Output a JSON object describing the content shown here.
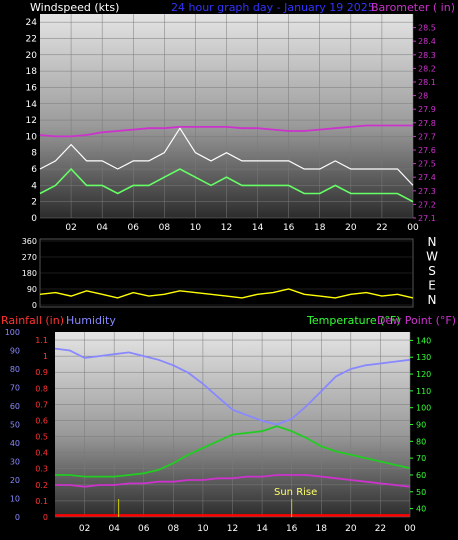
{
  "header": {
    "left_label": "Windspeed (kts)",
    "center_label": "24 hour graph day - January 19 2025",
    "right_label": "Barometer ( in)"
  },
  "wind_panel": {
    "left_ticks": [
      "24",
      "22",
      "20",
      "18",
      "16",
      "14",
      "12",
      "10",
      "8",
      "6",
      "4",
      "2",
      "0"
    ],
    "right_ticks": [
      "28.5",
      "28.4",
      "28.3",
      "28.2",
      "28.1",
      "28",
      "27.9",
      "27.8",
      "27.7",
      "27.6",
      "27.5",
      "27.4",
      "27.3",
      "27.2",
      "27.1"
    ],
    "x_ticks": [
      "02",
      "04",
      "06",
      "08",
      "10",
      "12",
      "14",
      "16",
      "18",
      "20",
      "22",
      "00"
    ]
  },
  "dir_panel": {
    "left_ticks": [
      "360",
      "270",
      "180",
      "90",
      "0"
    ],
    "compass": [
      "N",
      "W",
      "S",
      "E",
      "N"
    ]
  },
  "lower_header": {
    "rainfall_label": "Rainfall (in)",
    "humidity_label": "Humidity",
    "temperature_label": "Temperature (°F)",
    "dewpoint_label": "Dew Point (°F)"
  },
  "lower_panel": {
    "humidity_ticks": [
      "100",
      "90",
      "80",
      "70",
      "60",
      "50",
      "40",
      "30",
      "20",
      "10",
      "0"
    ],
    "rain_ticks": [
      "1.1",
      "1",
      "0.9",
      "0.8",
      "0.7",
      "0.6",
      "0.5",
      "0.4",
      "0.3",
      "0.2",
      "0.1",
      "0"
    ],
    "temp_ticks": [
      "140",
      "130",
      "120",
      "110",
      "100",
      "90",
      "80",
      "70",
      "60",
      "50",
      "40"
    ],
    "x_ticks": [
      "02",
      "04",
      "06",
      "08",
      "10",
      "12",
      "14",
      "16",
      "18",
      "20",
      "22",
      "00"
    ],
    "annotation": "Sun Rise"
  },
  "colors": {
    "windspeed": "#ffffff",
    "gust": "#66ff66",
    "barometer": "#cc33cc",
    "direction": "#ffff00",
    "rain": "#ff0000",
    "humidity": "#8888ff",
    "temperature": "#22cc22",
    "dewpoint": "#cc33cc",
    "header_left": "#ffffff",
    "header_center": "#3333ff",
    "header_right": "#cc33cc",
    "rain_label": "#ff3333",
    "humidity_label": "#8888ff",
    "temp_label": "#33ff33",
    "dew_label": "#cc33cc"
  },
  "chart_data": [
    {
      "type": "line",
      "x_hours": [
        0,
        1,
        2,
        3,
        4,
        5,
        6,
        7,
        8,
        9,
        10,
        11,
        12,
        13,
        14,
        15,
        16,
        17,
        18,
        19,
        20,
        21,
        22,
        23,
        24
      ],
      "series": [
        {
          "values": [
            3,
            4,
            6,
            4,
            4,
            3,
            4,
            4,
            5,
            6,
            5,
            4,
            5,
            4,
            4,
            4,
            4,
            3,
            3,
            4,
            3,
            3,
            3,
            3,
            2
          ]
        },
        {
          "values": [
            6,
            7,
            9,
            7,
            7,
            6,
            7,
            7,
            8,
            11,
            8,
            7,
            8,
            7,
            7,
            7,
            7,
            6,
            6,
            7,
            6,
            6,
            6,
            6,
            4
          ]
        }
      ],
      "y_left_range": [
        0,
        25
      ],
      "y_right_range": [
        27.1,
        28.6
      ],
      "barometer_values": [
        27.71,
        27.7,
        27.7,
        27.71,
        27.73,
        27.74,
        27.75,
        27.76,
        27.76,
        27.77,
        27.77,
        27.77,
        27.77,
        27.76,
        27.76,
        27.75,
        27.74,
        27.74,
        27.75,
        27.76,
        27.77,
        27.78,
        27.78,
        27.78,
        27.78
      ],
      "x_ticks": [
        "02",
        "04",
        "06",
        "08",
        "10",
        "12",
        "14",
        "16",
        "18",
        "20",
        "22",
        "00"
      ]
    },
    {
      "type": "line",
      "x_hours": [
        0,
        1,
        2,
        3,
        4,
        5,
        6,
        7,
        8,
        9,
        10,
        11,
        12,
        13,
        14,
        15,
        16,
        17,
        18,
        19,
        20,
        21,
        22,
        23,
        24
      ],
      "values": [
        60,
        70,
        50,
        80,
        60,
        40,
        70,
        50,
        60,
        80,
        70,
        60,
        50,
        40,
        60,
        70,
        90,
        60,
        50,
        40,
        60,
        70,
        50,
        60,
        40
      ],
      "y_range": [
        0,
        360
      ]
    },
    {
      "type": "line",
      "x_hours": [
        0,
        1,
        2,
        3,
        4,
        5,
        6,
        7,
        8,
        9,
        10,
        11,
        12,
        13,
        14,
        15,
        16,
        17,
        18,
        19,
        20,
        21,
        22,
        23,
        24
      ],
      "series": [
        {
          "values": [
            91,
            90,
            86,
            87,
            88,
            89,
            87,
            85,
            82,
            78,
            72,
            65,
            58,
            55,
            52,
            50,
            53,
            60,
            68,
            76,
            80,
            82,
            83,
            84,
            85
          ]
        },
        {
          "values": [
            60,
            60,
            59,
            59,
            59,
            60,
            61,
            63,
            67,
            72,
            76,
            80,
            84,
            85,
            86,
            89,
            86,
            82,
            77,
            74,
            72,
            70,
            68,
            66,
            64
          ]
        },
        {
          "values": [
            54,
            54,
            53,
            54,
            54,
            55,
            55,
            56,
            56,
            57,
            57,
            58,
            58,
            59,
            59,
            60,
            60,
            60,
            59,
            58,
            57,
            56,
            55,
            54,
            53
          ]
        },
        {
          "values": [
            0.01,
            0.01,
            0.01,
            0.01,
            0.01,
            0.01,
            0.01,
            0.01,
            0.01,
            0.01,
            0.01,
            0.01,
            0.01,
            0.01,
            0.01,
            0.01,
            0.01,
            0.01,
            0.01,
            0.01,
            0.01,
            0.01,
            0.01,
            0.01,
            0.01
          ]
        }
      ],
      "humidity_range": [
        0,
        100
      ],
      "temp_range": [
        35,
        145
      ],
      "rain_range": [
        0,
        1.15
      ],
      "x_ticks": [
        "02",
        "04",
        "06",
        "08",
        "10",
        "12",
        "14",
        "16",
        "18",
        "20",
        "22",
        "00"
      ]
    }
  ]
}
